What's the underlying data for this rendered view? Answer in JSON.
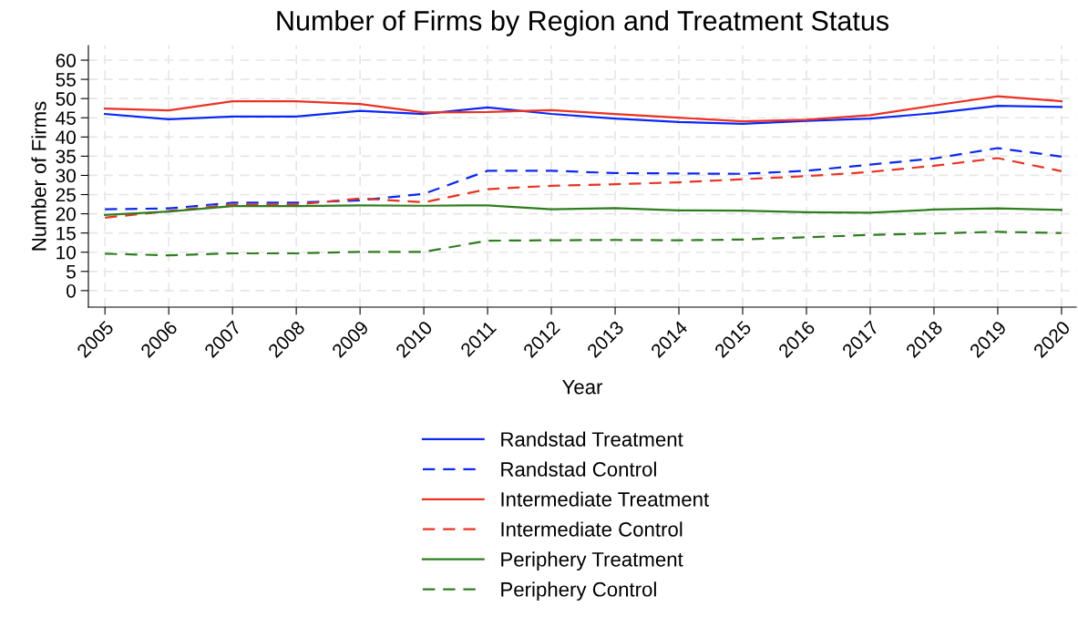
{
  "chart_data": {
    "type": "line",
    "title": "Number of Firms by Region and Treatment Status",
    "xlabel": "Year",
    "ylabel": "Number of Firms",
    "x": [
      2005,
      2006,
      2007,
      2008,
      2009,
      2010,
      2011,
      2012,
      2013,
      2014,
      2015,
      2016,
      2017,
      2018,
      2019,
      2020
    ],
    "series": [
      {
        "name": "Randstad Treatment",
        "color": "#0a28f5",
        "line_style": "solid",
        "values": [
          46,
          44.6,
          45.3,
          45.3,
          46.8,
          46,
          47.7,
          46,
          44.8,
          43.9,
          43.4,
          44.2,
          44.8,
          46.2,
          48.1,
          47.8
        ]
      },
      {
        "name": "Randstad Control",
        "color": "#0a28f5",
        "line_style": "dashed",
        "values": [
          21.2,
          21.4,
          22.9,
          22.9,
          23.5,
          25.2,
          31.2,
          31.2,
          30.6,
          30.5,
          30.4,
          31.2,
          32.8,
          34.4,
          37.1,
          34.9
        ]
      },
      {
        "name": "Intermediate Treatment",
        "color": "#ea3323",
        "line_style": "solid",
        "values": [
          47.4,
          46.9,
          49.3,
          49.3,
          48.6,
          46.4,
          46.5,
          47,
          46,
          45,
          44.1,
          44.5,
          45.7,
          48.2,
          50.6,
          49.3
        ]
      },
      {
        "name": "Intermediate Control",
        "color": "#ea3323",
        "line_style": "dashed",
        "values": [
          19,
          20.7,
          22.4,
          22.4,
          24,
          23,
          26.4,
          27.3,
          27.7,
          28.2,
          29,
          29.8,
          30.9,
          32.5,
          34.5,
          31.1
        ]
      },
      {
        "name": "Periphery Treatment",
        "color": "#2e7d1e",
        "line_style": "solid",
        "values": [
          19.7,
          20.6,
          22,
          22,
          22.2,
          22.1,
          22.2,
          21.2,
          21.5,
          20.9,
          20.8,
          20.4,
          20.3,
          21.1,
          21.4,
          21
        ]
      },
      {
        "name": "Periphery Control",
        "color": "#2e7d1e",
        "line_style": "dashed",
        "values": [
          9.6,
          9.2,
          9.7,
          9.7,
          10.1,
          10.1,
          13,
          13.1,
          13.2,
          13.1,
          13.3,
          13.9,
          14.5,
          14.9,
          15.3,
          15
        ]
      }
    ],
    "xlim": [
      2004.74,
      2020.23
    ],
    "ylim": [
      -4.3,
      63.8
    ],
    "xticks": [
      2005,
      2006,
      2007,
      2008,
      2009,
      2010,
      2011,
      2012,
      2013,
      2014,
      2015,
      2016,
      2017,
      2018,
      2019,
      2020
    ],
    "yticks": [
      0,
      5,
      10,
      15,
      20,
      25,
      30,
      35,
      40,
      45,
      50,
      55,
      60
    ],
    "grid": true,
    "legend": "bottom",
    "marker": "none"
  }
}
